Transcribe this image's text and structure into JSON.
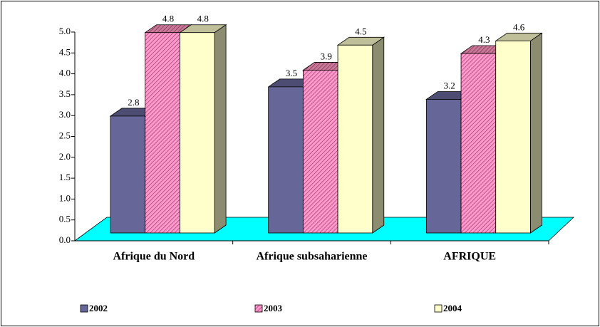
{
  "chart_data": {
    "type": "bar3d",
    "categories": [
      "Afrique du Nord",
      "Afrique subsaharienne",
      "AFRIQUE"
    ],
    "series": [
      {
        "name": "2002",
        "color": "#666699",
        "values": [
          2.8,
          3.5,
          3.2
        ]
      },
      {
        "name": "2003",
        "color": "#ff99cc",
        "hatch": true,
        "values": [
          4.8,
          3.9,
          4.3
        ]
      },
      {
        "name": "2004",
        "color": "#ffffcc",
        "values": [
          4.8,
          4.5,
          4.6
        ]
      }
    ],
    "ylim": [
      0,
      5
    ],
    "yticks": [
      {
        "value": 0,
        "label": "0.0"
      },
      0.5,
      {
        "value": 1,
        "label": "1.0"
      },
      1.5,
      {
        "value": 2,
        "label": "2.0"
      },
      2.5,
      {
        "value": 3,
        "label": "3.0"
      },
      3.5,
      {
        "value": 4,
        "label": "4.0"
      },
      4.5,
      {
        "value": 5,
        "label": "5.0"
      }
    ],
    "floor_color": "#00ffff",
    "legend": "bottom"
  }
}
